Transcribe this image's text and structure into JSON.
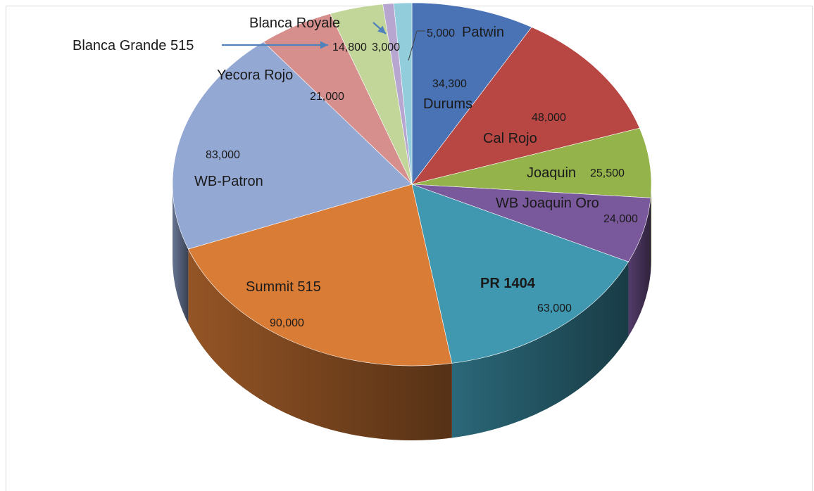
{
  "chart_data": {
    "type": "pie",
    "title": "",
    "style": "3d-exploded-none",
    "series": [
      {
        "name": "Durums",
        "value": 34300,
        "color": "#4a73b5"
      },
      {
        "name": "Cal Rojo",
        "value": 48000,
        "color": "#b84744"
      },
      {
        "name": "Joaquin",
        "value": 25500,
        "color": "#94b34a"
      },
      {
        "name": "WB Joaquin Oro",
        "value": 24000,
        "color": "#7a589c"
      },
      {
        "name": "PR 1404",
        "value": 63000,
        "color": "#3f98b0"
      },
      {
        "name": "Summit 515",
        "value": 90000,
        "color": "#d97c36"
      },
      {
        "name": "WB-Patron",
        "value": 83000,
        "color": "#94a8d4"
      },
      {
        "name": "Yecora Rojo",
        "value": 21000,
        "color": "#d68f8d"
      },
      {
        "name": "Blanca Grande 515",
        "value": 14800,
        "color": "#c2d69a"
      },
      {
        "name": "Blanca Royale",
        "value": 3000,
        "color": "#b7a6cf"
      },
      {
        "name": "Patwin",
        "value": 5000,
        "color": "#92cddc"
      }
    ],
    "value_labels": [
      "34,300",
      "48,000",
      "25,500",
      "24,000",
      "63,000",
      "90,000",
      "83,000",
      "21,000",
      "14,800",
      "3,000",
      "5,000"
    ],
    "arrow_color": "#4f81bd"
  }
}
